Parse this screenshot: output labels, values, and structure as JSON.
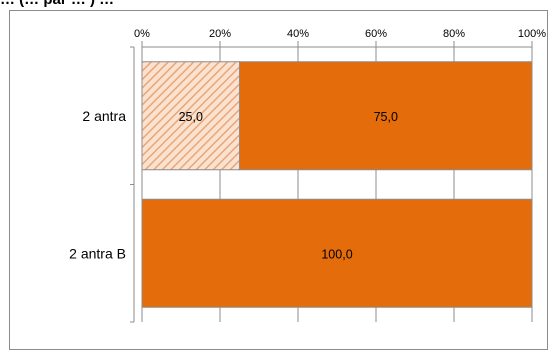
{
  "title": "… (… par … ) …",
  "chart_data": {
    "type": "bar",
    "orientation": "horizontal",
    "stacked": "100%",
    "title": "… (… par … ) …",
    "x_ticks": [
      "0%",
      "20%",
      "40%",
      "60%",
      "80%",
      "100%"
    ],
    "xlim": [
      0,
      100
    ],
    "categories": [
      "2 antra",
      "2 antra B"
    ],
    "series": [
      {
        "values": [
          25.0,
          0
        ],
        "labels": [
          "25,0",
          ""
        ],
        "color": "#f6c4a1",
        "pattern": "diagonal-hatch"
      },
      {
        "values": [
          75.0,
          100.0
        ],
        "labels": [
          "75,0",
          "100,0"
        ],
        "color": "#e46c0a"
      }
    ],
    "grid": true,
    "legend": "none"
  }
}
